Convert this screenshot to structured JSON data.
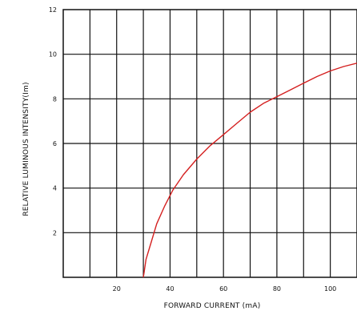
{
  "chart_data": {
    "type": "line",
    "title": "",
    "xlabel": "FORWARD CURRENT (mA)",
    "ylabel": "RELATIVE LUMINOUS INTENSITY(Im)",
    "xlim": [
      0,
      110
    ],
    "ylim": [
      0,
      12
    ],
    "x_ticks": [
      20,
      40,
      60,
      80,
      100
    ],
    "y_ticks": [
      2,
      4,
      6,
      8,
      10,
      12
    ],
    "grid": true,
    "line_color": "#d42020",
    "grid_color": "#111111",
    "series": [
      {
        "x": [
          30,
          31,
          33,
          35,
          38,
          41,
          45,
          50,
          55,
          60,
          65,
          70,
          75,
          80,
          85,
          90,
          95,
          100,
          105,
          110
        ],
        "y": [
          0,
          0.8,
          1.6,
          2.4,
          3.2,
          3.9,
          4.6,
          5.3,
          5.9,
          6.4,
          6.9,
          7.4,
          7.8,
          8.1,
          8.4,
          8.7,
          9.0,
          9.25,
          9.45,
          9.6
        ]
      }
    ]
  }
}
